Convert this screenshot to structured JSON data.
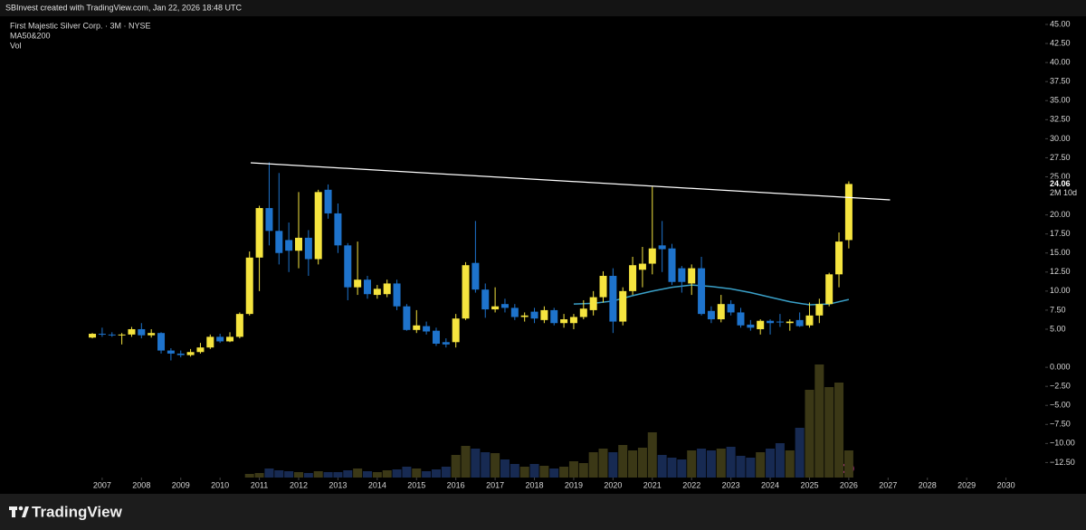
{
  "header": "SBInvest created with TradingView.com, Jan 22, 2026 18:48 UTC",
  "brand": "TradingView",
  "chart_data": {
    "type": "candlestick",
    "title": "First Majestic Silver Corp. · 3M · NYSE",
    "indicator_label": "MA50&200",
    "volume_label": "Vol",
    "countdown": "2M 10d",
    "up_color": "#f5e43f",
    "down_color": "#1e73cc",
    "volume_up_color": "#3b3816",
    "volume_down_color": "#172a52",
    "x": [
      2006.75,
      2007.0,
      2007.25,
      2007.5,
      2007.75,
      2008.0,
      2008.25,
      2008.5,
      2008.75,
      2009.0,
      2009.25,
      2009.5,
      2009.75,
      2010.0,
      2010.25,
      2010.5,
      2010.75,
      2011.0,
      2011.25,
      2011.5,
      2011.75,
      2012.0,
      2012.25,
      2012.5,
      2012.75,
      2013.0,
      2013.25,
      2013.5,
      2013.75,
      2014.0,
      2014.25,
      2014.5,
      2014.75,
      2015.0,
      2015.25,
      2015.5,
      2015.75,
      2016.0,
      2016.25,
      2016.5,
      2016.75,
      2017.0,
      2017.25,
      2017.5,
      2017.75,
      2018.0,
      2018.25,
      2018.5,
      2018.75,
      2019.0,
      2019.25,
      2019.5,
      2019.75,
      2020.0,
      2020.25,
      2020.5,
      2020.75,
      2021.0,
      2021.25,
      2021.5,
      2021.75,
      2022.0,
      2022.25,
      2022.5,
      2022.75,
      2023.0,
      2023.25,
      2023.5,
      2023.75,
      2024.0,
      2024.25,
      2024.5,
      2024.75,
      2025.0,
      2025.25,
      2025.5,
      2025.75,
      2026.0
    ],
    "open": [
      3.9,
      4.4,
      4.3,
      4.2,
      4.3,
      5.0,
      4.2,
      4.5,
      2.2,
      1.8,
      1.6,
      2.0,
      2.6,
      4.0,
      3.4,
      4.0,
      7.0,
      14.4,
      20.9,
      17.9,
      16.7,
      15.3,
      17.0,
      14.2,
      23.3,
      20.2,
      16.0,
      10.5,
      11.5,
      9.5,
      9.6,
      11.0,
      8.0,
      4.9,
      5.4,
      4.8,
      3.3,
      3.3,
      6.4,
      13.7,
      10.2,
      7.6,
      8.3,
      7.8,
      6.6,
      7.3,
      6.2,
      7.5,
      5.8,
      5.8,
      6.6,
      7.5,
      9.2,
      12.0,
      6.0,
      10.0,
      12.8,
      13.6,
      16.0,
      15.6,
      13.0,
      11.0,
      13.0,
      7.4,
      6.3,
      8.3,
      7.2,
      5.6,
      5.0,
      6.1,
      6.0,
      5.8,
      6.2,
      5.5,
      6.8,
      8.3,
      12.2,
      16.7
    ],
    "high": [
      4.5,
      5.2,
      4.6,
      4.5,
      5.3,
      5.8,
      5.0,
      4.6,
      2.5,
      2.2,
      2.4,
      3.2,
      4.3,
      4.4,
      4.6,
      7.2,
      15.2,
      21.2,
      26.9,
      25.5,
      19.0,
      23.0,
      18.0,
      23.3,
      24.0,
      21.5,
      16.3,
      16.5,
      12.0,
      10.8,
      11.5,
      11.5,
      8.3,
      7.5,
      6.0,
      5.2,
      3.8,
      7.0,
      13.8,
      19.2,
      11.0,
      10.5,
      9.0,
      8.3,
      7.2,
      7.8,
      8.0,
      7.8,
      7.0,
      7.0,
      8.8,
      10.0,
      12.6,
      13.0,
      10.5,
      14.5,
      15.8,
      23.7,
      19.2,
      16.2,
      13.3,
      13.5,
      14.5,
      8.0,
      9.5,
      8.8,
      7.8,
      6.2,
      6.3,
      6.3,
      7.0,
      6.3,
      7.2,
      8.5,
      9.0,
      12.4,
      17.7,
      24.4
    ],
    "low": [
      3.8,
      4.0,
      4.0,
      3.0,
      4.0,
      3.8,
      3.9,
      1.8,
      0.9,
      1.3,
      1.4,
      1.8,
      2.4,
      3.2,
      3.3,
      3.8,
      6.8,
      10.0,
      16.0,
      13.5,
      12.5,
      13.0,
      12.0,
      13.5,
      19.5,
      15.0,
      8.8,
      9.5,
      9.0,
      9.0,
      9.2,
      7.5,
      4.8,
      4.5,
      4.3,
      2.8,
      2.6,
      2.6,
      6.2,
      9.8,
      6.5,
      7.2,
      7.2,
      6.2,
      6.0,
      5.8,
      5.8,
      5.5,
      5.2,
      5.0,
      6.3,
      6.8,
      8.5,
      4.5,
      5.5,
      9.5,
      10.5,
      12.2,
      12.5,
      10.8,
      9.8,
      9.5,
      6.8,
      5.8,
      5.9,
      6.8,
      5.2,
      4.8,
      4.3,
      4.3,
      5.3,
      4.8,
      5.3,
      5.2,
      5.8,
      8.0,
      10.5,
      15.6
    ],
    "close": [
      4.4,
      4.3,
      4.2,
      4.3,
      5.0,
      4.2,
      4.5,
      2.2,
      1.8,
      1.6,
      2.0,
      2.6,
      4.0,
      3.4,
      4.0,
      7.0,
      14.4,
      20.9,
      17.9,
      15.0,
      15.3,
      17.0,
      14.2,
      23.0,
      20.2,
      16.0,
      10.5,
      11.5,
      9.6,
      10.3,
      11.0,
      8.0,
      4.9,
      5.5,
      4.7,
      3.1,
      3.0,
      6.4,
      13.4,
      10.2,
      7.6,
      8.0,
      7.8,
      6.6,
      6.8,
      6.4,
      7.5,
      5.8,
      6.3,
      6.6,
      7.7,
      9.2,
      12.0,
      6.0,
      10.0,
      13.4,
      13.6,
      15.6,
      15.5,
      11.2,
      11.2,
      13.0,
      7.0,
      6.3,
      8.3,
      7.2,
      5.5,
      5.2,
      6.1,
      5.8,
      5.9,
      6.0,
      5.4,
      6.8,
      8.3,
      12.2,
      16.5,
      24.06
    ],
    "volume": [
      1,
      1,
      1,
      1,
      1,
      1,
      1,
      1,
      1,
      1,
      1,
      1,
      2,
      2,
      2,
      3,
      4,
      5,
      10,
      8,
      7,
      6,
      5,
      7,
      6,
      6,
      8,
      10,
      7,
      6,
      8,
      9,
      12,
      10,
      7,
      9,
      12,
      25,
      35,
      32,
      28,
      27,
      20,
      15,
      12,
      15,
      13,
      10,
      12,
      18,
      16,
      28,
      32,
      28,
      36,
      30,
      33,
      50,
      25,
      22,
      20,
      30,
      32,
      30,
      32,
      34,
      24,
      22,
      28,
      32,
      38,
      30,
      55,
      97,
      125,
      100,
      105,
      30
    ],
    "volume_ylim": [
      0,
      510
    ],
    "ma": {
      "color": "#3aa0c8",
      "x": [
        2019.0,
        2019.5,
        2020.0,
        2020.5,
        2021.0,
        2021.5,
        2022.0,
        2022.5,
        2023.0,
        2023.5,
        2024.0,
        2024.5,
        2025.0,
        2025.5,
        2026.0
      ],
      "values": [
        8.3,
        8.4,
        8.7,
        9.4,
        10.0,
        10.5,
        10.8,
        10.6,
        10.3,
        9.8,
        9.2,
        8.6,
        8.2,
        8.3,
        8.9
      ]
    },
    "trendline": {
      "color": "#ffffff",
      "x": [
        2010.78,
        2027.05
      ],
      "values": [
        26.84,
        21.97
      ]
    },
    "xlim": [
      2004.4,
      2031.0
    ],
    "ylim": [
      -14.47,
      46.07
    ],
    "xticks": [
      2007,
      2008,
      2009,
      2010,
      2011,
      2012,
      2013,
      2014,
      2015,
      2016,
      2017,
      2018,
      2019,
      2020,
      2021,
      2022,
      2023,
      2024,
      2025,
      2026,
      2027,
      2028,
      2029,
      2030
    ],
    "yticks": [
      {
        "value": 45,
        "label": "45.00"
      },
      {
        "value": 42.5,
        "label": "42.50"
      },
      {
        "value": 40,
        "label": "40.00"
      },
      {
        "value": 37.5,
        "label": "37.50"
      },
      {
        "value": 35,
        "label": "35.00"
      },
      {
        "value": 32.5,
        "label": "32.50"
      },
      {
        "value": 30,
        "label": "30.00"
      },
      {
        "value": 27.5,
        "label": "27.50"
      },
      {
        "value": 25,
        "label": "25.00"
      },
      {
        "value": 20,
        "label": "20.00"
      },
      {
        "value": 17.5,
        "label": "17.50"
      },
      {
        "value": 15,
        "label": "15.00"
      },
      {
        "value": 12.5,
        "label": "12.50"
      },
      {
        "value": 10,
        "label": "10.00"
      },
      {
        "value": 7.5,
        "label": "7.50"
      },
      {
        "value": 5,
        "label": "5.00"
      },
      {
        "value": 0,
        "label": "0.000"
      },
      {
        "value": -2.5,
        "label": "−2.50"
      },
      {
        "value": -5,
        "label": "−5.00"
      },
      {
        "value": -7.5,
        "label": "−7.50"
      },
      {
        "value": -10,
        "label": "−10.00"
      },
      {
        "value": -12.5,
        "label": "−12.50"
      }
    ]
  }
}
